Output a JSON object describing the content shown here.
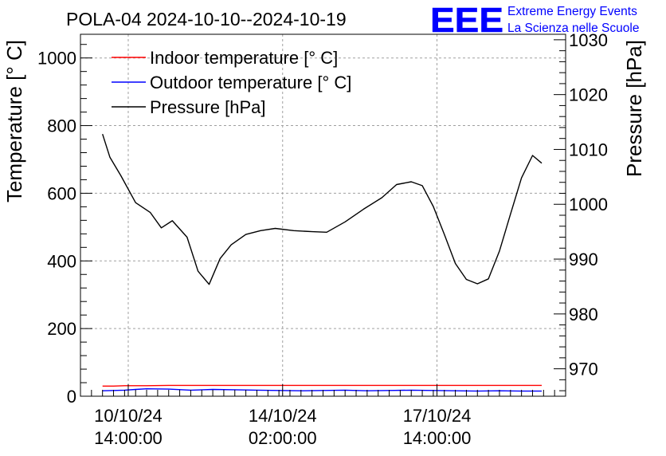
{
  "chart_data": {
    "type": "line",
    "title": "POLA-04 2024-10-10--2024-10-19",
    "ylabel": "Temperature [° C]",
    "y2label": "Pressure [hPa]",
    "xlabel": "",
    "ylim": [
      0,
      1070
    ],
    "y2lim": [
      965,
      1031
    ],
    "yticks": [
      "0",
      "200",
      "400",
      "600",
      "800",
      "1000"
    ],
    "y2ticks": [
      "970",
      "980",
      "990",
      "1000",
      "1010",
      "1020",
      "1030"
    ],
    "xticks": [
      {
        "date": "2024-10-10T14:00:00",
        "line1": "10/10/24",
        "line2": "14:00:00"
      },
      {
        "date": "2024-10-14T02:00:00",
        "line1": "14/10/24",
        "line2": "02:00:00"
      },
      {
        "date": "2024-10-17T14:00:00",
        "line1": "17/10/24",
        "line2": "14:00:00"
      }
    ],
    "xlim": [
      "2024-10-09T12:00:00",
      "2024-10-20T12:00:00"
    ],
    "grid": true,
    "legend_position": "top-left",
    "colors": {
      "indoor": "#ff0000",
      "outdoor": "#0000ff",
      "pressure": "#000000"
    },
    "series": [
      {
        "name": "Indoor temperature [° C]",
        "axis": "left",
        "x": [
          "2024-10-10T00:00:00",
          "2024-10-10T06:00:00",
          "2024-10-10T12:00:00",
          "2024-10-10T18:00:00",
          "2024-10-11T00:00:00",
          "2024-10-11T12:00:00",
          "2024-10-12T00:00:00",
          "2024-10-12T12:00:00",
          "2024-10-13T00:00:00",
          "2024-10-13T12:00:00",
          "2024-10-14T00:00:00",
          "2024-10-14T12:00:00",
          "2024-10-15T00:00:00",
          "2024-10-15T12:00:00",
          "2024-10-16T00:00:00",
          "2024-10-16T12:00:00",
          "2024-10-17T00:00:00",
          "2024-10-17T12:00:00",
          "2024-10-18T00:00:00",
          "2024-10-18T12:00:00",
          "2024-10-19T00:00:00",
          "2024-10-19T12:00:00",
          "2024-10-19T23:00:00"
        ],
        "y": [
          30,
          30,
          31,
          31,
          31,
          32,
          32,
          32,
          32,
          32,
          32,
          32,
          32,
          32,
          32,
          32,
          32,
          32,
          32,
          32,
          32,
          32,
          32
        ]
      },
      {
        "name": "Outdoor temperature [° C]",
        "axis": "left",
        "x": [
          "2024-10-10T00:00:00",
          "2024-10-10T06:00:00",
          "2024-10-10T12:00:00",
          "2024-10-10T18:00:00",
          "2024-10-11T00:00:00",
          "2024-10-11T12:00:00",
          "2024-10-12T00:00:00",
          "2024-10-12T12:00:00",
          "2024-10-13T00:00:00",
          "2024-10-13T12:00:00",
          "2024-10-14T00:00:00",
          "2024-10-14T12:00:00",
          "2024-10-15T00:00:00",
          "2024-10-15T12:00:00",
          "2024-10-16T00:00:00",
          "2024-10-16T12:00:00",
          "2024-10-17T00:00:00",
          "2024-10-17T12:00:00",
          "2024-10-18T00:00:00",
          "2024-10-18T12:00:00",
          "2024-10-19T00:00:00",
          "2024-10-19T12:00:00",
          "2024-10-19T23:00:00"
        ],
        "y": [
          16,
          17,
          18,
          20,
          22,
          21,
          18,
          20,
          19,
          18,
          17,
          16,
          17,
          18,
          16,
          17,
          18,
          17,
          16,
          15,
          16,
          15,
          15
        ]
      },
      {
        "name": "Pressure [hPa]",
        "axis": "right",
        "x": [
          "2024-10-10T00:00:00",
          "2024-10-10T04:00:00",
          "2024-10-10T10:00:00",
          "2024-10-10T18:00:00",
          "2024-10-11T02:00:00",
          "2024-10-11T08:00:00",
          "2024-10-11T14:00:00",
          "2024-10-11T22:00:00",
          "2024-10-12T04:00:00",
          "2024-10-12T10:00:00",
          "2024-10-12T16:00:00",
          "2024-10-12T22:00:00",
          "2024-10-13T06:00:00",
          "2024-10-13T14:00:00",
          "2024-10-13T22:00:00",
          "2024-10-14T08:00:00",
          "2024-10-14T18:00:00",
          "2024-10-15T02:00:00",
          "2024-10-15T12:00:00",
          "2024-10-15T22:00:00",
          "2024-10-16T08:00:00",
          "2024-10-16T16:00:00",
          "2024-10-17T00:00:00",
          "2024-10-17T06:00:00",
          "2024-10-17T12:00:00",
          "2024-10-17T18:00:00",
          "2024-10-18T00:00:00",
          "2024-10-18T06:00:00",
          "2024-10-18T12:00:00",
          "2024-10-18T18:00:00",
          "2024-10-19T00:00:00",
          "2024-10-19T06:00:00",
          "2024-10-19T12:00:00",
          "2024-10-19T18:00:00",
          "2024-10-19T23:00:00"
        ],
        "y": [
          1012.8,
          1008.6,
          1005.2,
          1000.3,
          998.5,
          995.7,
          997.0,
          994.0,
          987.8,
          985.4,
          990.1,
          992.6,
          994.5,
          995.2,
          995.6,
          995.2,
          995.0,
          994.9,
          996.8,
          999.1,
          1001.2,
          1003.6,
          1004.1,
          1003.4,
          999.6,
          994.5,
          989.2,
          986.3,
          985.5,
          986.4,
          991.5,
          998.2,
          1004.8,
          1008.9,
          1007.5
        ]
      }
    ]
  },
  "logo": {
    "text": "EEE",
    "line1": "Extreme Energy Events",
    "line2": "La Scienza nelle Scuole",
    "color": "#0000ff"
  }
}
